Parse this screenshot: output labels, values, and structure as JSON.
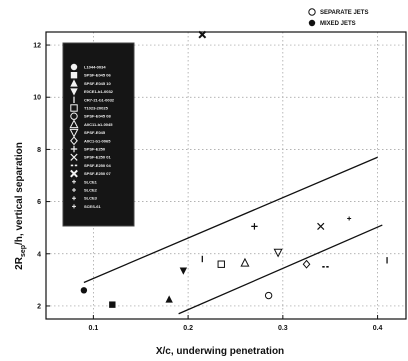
{
  "chart_data": {
    "type": "scatter",
    "xlabel": "X/c, underwing penetration",
    "ylabel": "2R",
    "ylabel_sub": "sep",
    "ylabel_rest": "/h, vertical separation",
    "xlim": [
      0.05,
      0.43
    ],
    "ylim": [
      1.5,
      12.5
    ],
    "x_ticks": [
      0.1,
      0.2,
      0.3,
      0.4
    ],
    "x_tick_labels": [
      "0.1",
      "0.2",
      "0.3",
      "0.4"
    ],
    "y_ticks": [
      2,
      4,
      6,
      8,
      10,
      12
    ],
    "y_tick_labels": [
      "2",
      "4",
      "6",
      "8",
      "10",
      "12"
    ],
    "grid": true,
    "top_legend": [
      {
        "label": "SEPARATE JETS",
        "marker": "open-circle"
      },
      {
        "label": "MIXED JETS",
        "marker": "filled-circle"
      }
    ],
    "inner_legend_labels": [
      "L1044-0034",
      "SPSF-E045 06",
      "SPSF-E045 10",
      "E0CE1-b1-0032",
      "CR7-21-b1-0032",
      "T1023-20025",
      "SPSF-E045 08",
      "A0C11-b1-0045",
      "SPSF-E045",
      "A0C1-b1-0065",
      "SPSF-E250",
      "SPSF-E250 01",
      "SPSF-E250 04",
      "SPSF-E250 07",
      "SLCE1",
      "SLCE2",
      "SLCE3",
      "SCES-61"
    ],
    "points": [
      {
        "x": 0.09,
        "y": 2.6,
        "marker": "filled-circle"
      },
      {
        "x": 0.12,
        "y": 2.05,
        "marker": "filled-square"
      },
      {
        "x": 0.18,
        "y": 2.25,
        "marker": "filled-triangle"
      },
      {
        "x": 0.195,
        "y": 3.35,
        "marker": "filled-triangle-down"
      },
      {
        "x": 0.215,
        "y": 3.8,
        "marker": "bar"
      },
      {
        "x": 0.235,
        "y": 3.6,
        "marker": "open-square"
      },
      {
        "x": 0.26,
        "y": 3.65,
        "marker": "open-triangle"
      },
      {
        "x": 0.27,
        "y": 5.05,
        "marker": "plus"
      },
      {
        "x": 0.285,
        "y": 2.4,
        "marker": "open-circle"
      },
      {
        "x": 0.295,
        "y": 4.05,
        "marker": "open-triangle-down"
      },
      {
        "x": 0.325,
        "y": 3.6,
        "marker": "open-diamond"
      },
      {
        "x": 0.34,
        "y": 5.05,
        "marker": "x"
      },
      {
        "x": 0.345,
        "y": 3.5,
        "marker": "dot-dash"
      },
      {
        "x": 0.37,
        "y": 5.35,
        "marker": "small-plus"
      },
      {
        "x": 0.41,
        "y": 3.75,
        "marker": "bar"
      },
      {
        "x": 0.215,
        "y": 12.4,
        "marker": "bold-x"
      }
    ],
    "lines": [
      {
        "x": [
          0.09,
          0.4
        ],
        "y": [
          2.9,
          7.7
        ]
      },
      {
        "x": [
          0.19,
          0.405
        ],
        "y": [
          1.7,
          5.1
        ]
      }
    ]
  }
}
